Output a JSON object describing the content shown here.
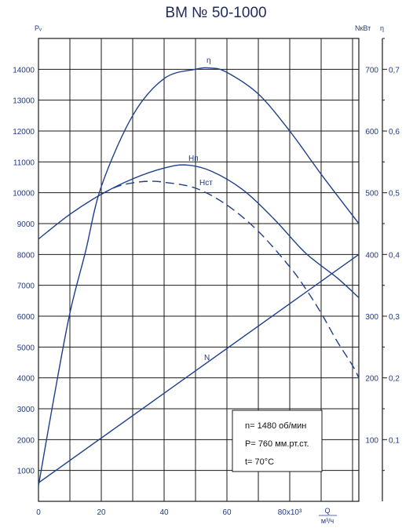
{
  "chart_data": {
    "type": "line",
    "title": "ВМ № 50-1000",
    "x_axis": {
      "ticks": [
        0,
        20,
        40,
        60,
        80
      ],
      "tick_labels": [
        "0",
        "20",
        "40",
        "60",
        "80x10³"
      ],
      "range": [
        0,
        102
      ],
      "unit_top": "Q",
      "unit_bottom": "м³/ч"
    },
    "y_left": {
      "label": "Pᵥ",
      "range": [
        0,
        15000
      ],
      "ticks": [
        1000,
        2000,
        3000,
        4000,
        5000,
        6000,
        7000,
        8000,
        9000,
        10000,
        11000,
        12000,
        13000,
        14000
      ]
    },
    "y_right_power": {
      "label": "NкВт",
      "range": [
        0,
        750
      ],
      "ticks": [
        100,
        200,
        300,
        400,
        500,
        600,
        700
      ]
    },
    "y_right_eff": {
      "label": "η",
      "range": [
        0,
        0.75
      ],
      "ticks": [
        0.1,
        0.2,
        0.3,
        0.4,
        0.5,
        0.6,
        0.7
      ],
      "tick_labels": [
        "0,1",
        "0,2",
        "0,3",
        "0,4",
        "0,5",
        "0,6",
        "0,7"
      ]
    },
    "grid": true,
    "series": [
      {
        "name": "Нп",
        "axis": "left",
        "style": "solid",
        "x": [
          0,
          10,
          20,
          30,
          40,
          47,
          55,
          65,
          75,
          85,
          95,
          102
        ],
        "y": [
          8500,
          9300,
          9950,
          10450,
          10800,
          10900,
          10700,
          10100,
          9150,
          8050,
          7250,
          6600
        ]
      },
      {
        "name": "Нст",
        "axis": "left",
        "style": "dashed",
        "x": [
          20,
          25,
          30,
          35,
          40,
          50,
          60,
          70,
          80,
          85,
          90,
          95,
          100,
          102
        ],
        "y": [
          9950,
          10200,
          10320,
          10370,
          10340,
          10150,
          9600,
          8750,
          7600,
          6900,
          6100,
          5200,
          4400,
          4000
        ]
      },
      {
        "name": "η",
        "axis": "right_eff",
        "style": "solid",
        "x": [
          0,
          5,
          10,
          15,
          20,
          30,
          40,
          50,
          55,
          60,
          70,
          80,
          90,
          102
        ],
        "y": [
          0.025,
          0.17,
          0.305,
          0.405,
          0.51,
          0.625,
          0.685,
          0.7,
          0.702,
          0.695,
          0.66,
          0.6,
          0.53,
          0.45
        ]
      },
      {
        "name": "N",
        "axis": "right_power",
        "style": "solid",
        "x": [
          0,
          102
        ],
        "y": [
          30,
          400
        ]
      }
    ],
    "annotations": [
      "n= 1480 об/мин",
      "P= 760 мм.рт.ст.",
      "t= 70°С"
    ]
  }
}
